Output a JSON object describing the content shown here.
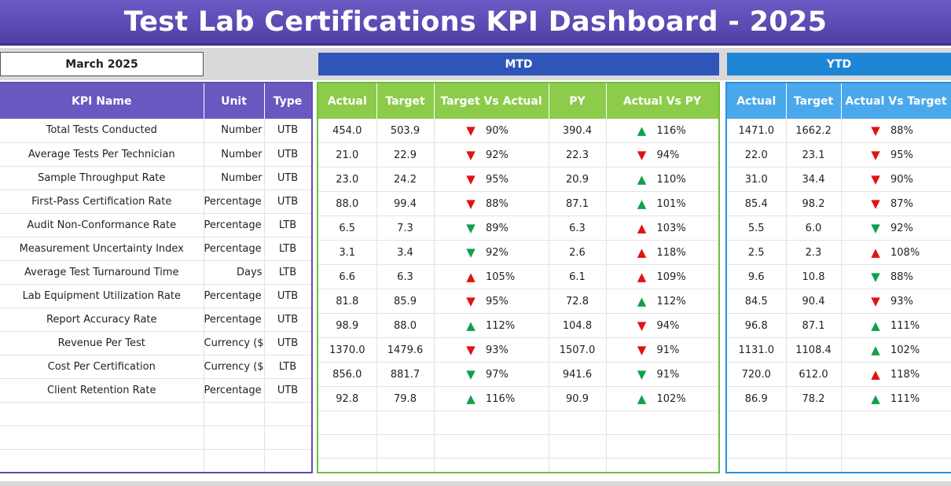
{
  "title": "Test Lab Certifications KPI Dashboard - 2025",
  "month": "March 2025",
  "sections": {
    "mtd": "MTD",
    "ytd": "YTD"
  },
  "headers": {
    "kpi": [
      "KPI Name",
      "Unit",
      "Type"
    ],
    "mtd": [
      "Actual",
      "Target",
      "Target Vs Actual",
      "PY",
      "Actual Vs PY"
    ],
    "ytd": [
      "Actual",
      "Target",
      "Actual Vs Target"
    ]
  },
  "colors": {
    "up_arrow": "#12a14b",
    "down_arrow": "#e31212",
    "title_bg": "#5a4bb5",
    "mtd": "#2f55b8",
    "ytd": "#1f86d6"
  },
  "rows": [
    {
      "kpi": "Total Tests Conducted",
      "unit": "Number",
      "type": "UTB",
      "mtd": {
        "actual": "454.0",
        "target": "503.9",
        "tva_dir": "down",
        "tva_color": "red",
        "tva": "90%",
        "py": "390.4",
        "avp_dir": "up",
        "avp_color": "green",
        "avp": "116%"
      },
      "ytd": {
        "actual": "1471.0",
        "target": "1662.2",
        "avt_dir": "down",
        "avt_color": "red",
        "avt": "88%"
      }
    },
    {
      "kpi": "Average Tests Per Technician",
      "unit": "Number",
      "type": "UTB",
      "mtd": {
        "actual": "21.0",
        "target": "22.9",
        "tva_dir": "down",
        "tva_color": "red",
        "tva": "92%",
        "py": "22.3",
        "avp_dir": "down",
        "avp_color": "red",
        "avp": "94%"
      },
      "ytd": {
        "actual": "22.0",
        "target": "23.1",
        "avt_dir": "down",
        "avt_color": "red",
        "avt": "95%"
      }
    },
    {
      "kpi": "Sample Throughput Rate",
      "unit": "Number",
      "type": "UTB",
      "mtd": {
        "actual": "23.0",
        "target": "24.2",
        "tva_dir": "down",
        "tva_color": "red",
        "tva": "95%",
        "py": "20.9",
        "avp_dir": "up",
        "avp_color": "green",
        "avp": "110%"
      },
      "ytd": {
        "actual": "31.0",
        "target": "34.4",
        "avt_dir": "down",
        "avt_color": "red",
        "avt": "90%"
      }
    },
    {
      "kpi": "First-Pass Certification Rate",
      "unit": "Percentage (%)",
      "type": "UTB",
      "mtd": {
        "actual": "88.0",
        "target": "99.4",
        "tva_dir": "down",
        "tva_color": "red",
        "tva": "88%",
        "py": "87.1",
        "avp_dir": "up",
        "avp_color": "green",
        "avp": "101%"
      },
      "ytd": {
        "actual": "85.4",
        "target": "98.2",
        "avt_dir": "down",
        "avt_color": "red",
        "avt": "87%"
      }
    },
    {
      "kpi": "Audit Non-Conformance Rate",
      "unit": "Percentage (%)",
      "type": "LTB",
      "mtd": {
        "actual": "6.5",
        "target": "7.3",
        "tva_dir": "down",
        "tva_color": "green",
        "tva": "89%",
        "py": "6.3",
        "avp_dir": "up",
        "avp_color": "red",
        "avp": "103%"
      },
      "ytd": {
        "actual": "5.5",
        "target": "6.0",
        "avt_dir": "down",
        "avt_color": "green",
        "avt": "92%"
      }
    },
    {
      "kpi": "Measurement Uncertainty Index",
      "unit": "Percentage (%)",
      "type": "LTB",
      "mtd": {
        "actual": "3.1",
        "target": "3.4",
        "tva_dir": "down",
        "tva_color": "green",
        "tva": "92%",
        "py": "2.6",
        "avp_dir": "up",
        "avp_color": "red",
        "avp": "118%"
      },
      "ytd": {
        "actual": "2.5",
        "target": "2.3",
        "avt_dir": "up",
        "avt_color": "red",
        "avt": "108%"
      }
    },
    {
      "kpi": "Average Test Turnaround Time",
      "unit": "Days",
      "type": "LTB",
      "mtd": {
        "actual": "6.6",
        "target": "6.3",
        "tva_dir": "up",
        "tva_color": "red",
        "tva": "105%",
        "py": "6.1",
        "avp_dir": "up",
        "avp_color": "red",
        "avp": "109%"
      },
      "ytd": {
        "actual": "9.6",
        "target": "10.8",
        "avt_dir": "down",
        "avt_color": "green",
        "avt": "88%"
      }
    },
    {
      "kpi": "Lab Equipment Utilization Rate",
      "unit": "Percentage (%)",
      "type": "UTB",
      "mtd": {
        "actual": "81.8",
        "target": "85.9",
        "tva_dir": "down",
        "tva_color": "red",
        "tva": "95%",
        "py": "72.8",
        "avp_dir": "up",
        "avp_color": "green",
        "avp": "112%"
      },
      "ytd": {
        "actual": "84.5",
        "target": "90.4",
        "avt_dir": "down",
        "avt_color": "red",
        "avt": "93%"
      }
    },
    {
      "kpi": "Report Accuracy Rate",
      "unit": "Percentage (%)",
      "type": "UTB",
      "mtd": {
        "actual": "98.9",
        "target": "88.0",
        "tva_dir": "up",
        "tva_color": "green",
        "tva": "112%",
        "py": "104.8",
        "avp_dir": "down",
        "avp_color": "red",
        "avp": "94%"
      },
      "ytd": {
        "actual": "96.8",
        "target": "87.1",
        "avt_dir": "up",
        "avt_color": "green",
        "avt": "111%"
      }
    },
    {
      "kpi": "Revenue Per Test",
      "unit": "Currency ($)",
      "type": "UTB",
      "mtd": {
        "actual": "1370.0",
        "target": "1479.6",
        "tva_dir": "down",
        "tva_color": "red",
        "tva": "93%",
        "py": "1507.0",
        "avp_dir": "down",
        "avp_color": "red",
        "avp": "91%"
      },
      "ytd": {
        "actual": "1131.0",
        "target": "1108.4",
        "avt_dir": "up",
        "avt_color": "green",
        "avt": "102%"
      }
    },
    {
      "kpi": "Cost Per Certification",
      "unit": "Currency ($)",
      "type": "LTB",
      "mtd": {
        "actual": "856.0",
        "target": "881.7",
        "tva_dir": "down",
        "tva_color": "green",
        "tva": "97%",
        "py": "941.6",
        "avp_dir": "down",
        "avp_color": "green",
        "avp": "91%"
      },
      "ytd": {
        "actual": "720.0",
        "target": "612.0",
        "avt_dir": "up",
        "avt_color": "red",
        "avt": "118%"
      }
    },
    {
      "kpi": "Client Retention Rate",
      "unit": "Percentage (%)",
      "type": "UTB",
      "mtd": {
        "actual": "92.8",
        "target": "79.8",
        "tva_dir": "up",
        "tva_color": "green",
        "tva": "116%",
        "py": "90.9",
        "avp_dir": "up",
        "avp_color": "green",
        "avp": "102%"
      },
      "ytd": {
        "actual": "86.9",
        "target": "78.2",
        "avt_dir": "up",
        "avt_color": "green",
        "avt": "111%"
      }
    }
  ],
  "empty_rows": 3
}
